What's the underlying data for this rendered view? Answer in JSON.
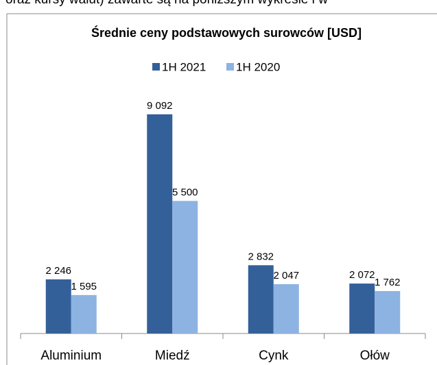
{
  "text_above": "oraz kursy walut) zawarte są na poniższym wykresie i w",
  "chart_data": {
    "type": "bar",
    "title": "Średnie ceny podstawowych surowców [USD]",
    "categories": [
      "Aluminium",
      "Miedź",
      "Cynk",
      "Ołów"
    ],
    "series": [
      {
        "name": "1H 2021",
        "color": "#34609a",
        "values": [
          2246,
          9092,
          2832,
          2072
        ],
        "value_labels": [
          "2 246",
          "9 092",
          "2 832",
          "2 072"
        ]
      },
      {
        "name": "1H 2020",
        "color": "#8db3e2",
        "values": [
          1595,
          5500,
          2047,
          1762
        ],
        "value_labels": [
          "1 595",
          "5 500",
          "2 047",
          "1 762"
        ]
      }
    ],
    "ylim": [
      0,
      10000
    ],
    "legend": "top"
  }
}
